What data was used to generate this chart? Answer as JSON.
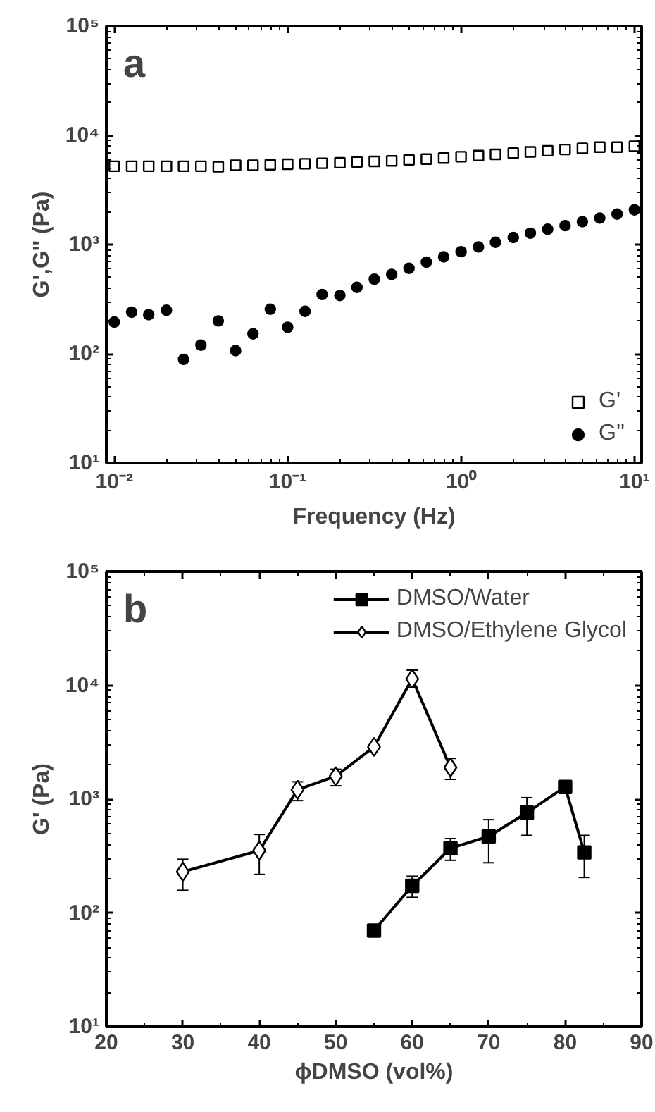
{
  "chart_data": [
    {
      "type": "scatter",
      "annotations": [
        "a"
      ],
      "xlabel": "Frequency (Hz)",
      "ylabel": "G',G'' (Pa)",
      "log": "xy",
      "legend": "bottom right",
      "grid": false,
      "x": [
        0.01,
        0.0126,
        0.0158,
        0.02,
        0.0251,
        0.0316,
        0.0398,
        0.0501,
        0.0631,
        0.0794,
        0.1,
        0.126,
        0.158,
        0.2,
        0.251,
        0.316,
        0.398,
        0.501,
        0.631,
        0.794,
        1,
        1.26,
        1.58,
        2,
        2.51,
        3.16,
        3.98,
        5.01,
        6.31,
        7.94,
        10
      ],
      "xlim": [
        0.009,
        11
      ],
      "ylim": [
        10,
        100000
      ],
      "xticks": [
        {
          "value": 0.01,
          "label": "10⁻²"
        },
        {
          "value": 0.1,
          "label": "10⁻¹"
        },
        {
          "value": 1,
          "label": "10⁰"
        },
        {
          "value": 10,
          "label": "10¹"
        }
      ],
      "yticks": [
        {
          "value": 10,
          "label": "10¹"
        },
        {
          "value": 100,
          "label": "10²"
        },
        {
          "value": 1000,
          "label": "10³"
        },
        {
          "value": 10000,
          "label": "10⁴"
        },
        {
          "value": 100000,
          "label": "10⁵"
        }
      ],
      "series": [
        {
          "name": "G'",
          "color": "#000000",
          "marker": "square",
          "values": [
            5210,
            5210,
            5210,
            5210,
            5210,
            5210,
            5150,
            5320,
            5320,
            5380,
            5440,
            5490,
            5550,
            5610,
            5700,
            5770,
            5830,
            5960,
            6060,
            6200,
            6370,
            6520,
            6690,
            6870,
            7050,
            7230,
            7420,
            7600,
            7790,
            7790,
            7950
          ]
        },
        {
          "name": "G''",
          "color": "#000000",
          "marker": "circle",
          "values": [
            195,
            240,
            228,
            250,
            89,
            120,
            200,
            107,
            152,
            256,
            175,
            245,
            349,
            342,
            406,
            482,
            533,
            606,
            690,
            771,
            860,
            951,
            1050,
            1160,
            1270,
            1380,
            1490,
            1620,
            1750,
            1900,
            2080
          ]
        }
      ]
    },
    {
      "type": "line",
      "annotations": [
        "b"
      ],
      "xlabel": "ϕDMSO (vol%)",
      "ylabel": "G' (Pa)",
      "log": "y",
      "legend": "top right",
      "grid": false,
      "xlim": [
        20,
        90
      ],
      "ylim": [
        10,
        100000
      ],
      "xticks": [
        20,
        30,
        40,
        50,
        60,
        70,
        80,
        90
      ],
      "yticks": [
        {
          "value": 10,
          "label": "10¹"
        },
        {
          "value": 100,
          "label": "10²"
        },
        {
          "value": 1000,
          "label": "10³"
        },
        {
          "value": 10000,
          "label": "10⁴"
        },
        {
          "value": 100000,
          "label": "10⁵"
        }
      ],
      "series": [
        {
          "name": "DMSO/Water",
          "color": "#000000",
          "marker": "square",
          "x": [
            55,
            60,
            65,
            70,
            75,
            80,
            82.5
          ],
          "values": [
            70,
            173,
            370,
            470,
            760,
            1280,
            340
          ],
          "errors": [
            null,
            [
              137,
              210
            ],
            [
              290,
              450
            ],
            [
              276,
              660
            ],
            [
              480,
              1030
            ],
            null,
            [
              205,
              480
            ]
          ]
        },
        {
          "name": "DMSO/Ethylene Glycol",
          "color": "#000000",
          "marker": "diamond",
          "x": [
            30,
            40,
            45,
            50,
            55,
            60,
            65
          ],
          "values": [
            230,
            353,
            1210,
            1590,
            2880,
            11400,
            1900
          ],
          "errors": [
            [
              158,
              296
            ],
            [
              218,
              489
            ],
            [
              970,
              1420
            ],
            [
              1310,
              1830
            ],
            null,
            [
              9600,
              13600
            ],
            [
              1490,
              2280
            ]
          ]
        }
      ]
    }
  ]
}
